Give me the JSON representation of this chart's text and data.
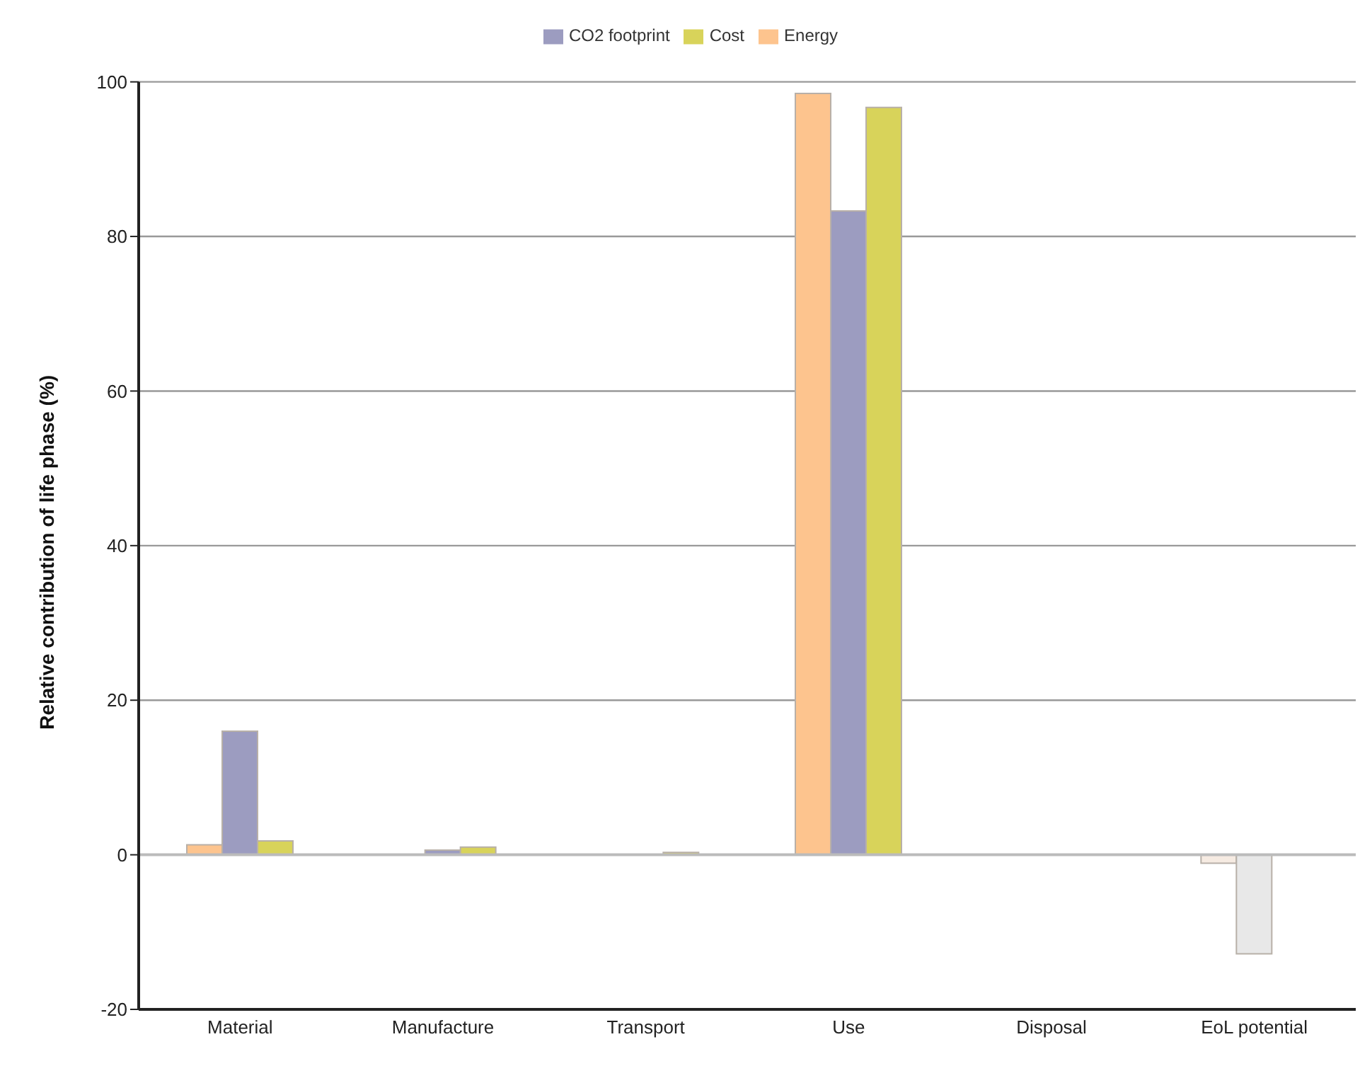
{
  "chart_data": {
    "type": "bar",
    "ylabel": "Relative contribution of life phase (%)",
    "categories": [
      "Material",
      "Manufacture",
      "Transport",
      "Use",
      "Disposal",
      "EoL potential"
    ],
    "series": [
      {
        "name": "Energy",
        "color": "#fdc48e",
        "colors": [
          "#fdc48e",
          "#fdc48e",
          "#fdc48e",
          "#fdc48e",
          "#fdc48e",
          "#f6ebe2"
        ],
        "values": [
          1.3,
          0,
          0,
          98.5,
          0,
          -1.1
        ]
      },
      {
        "name": "CO2 footprint",
        "color": "#9c9cc0",
        "colors": [
          "#9c9cc0",
          "#9c9cc0",
          "#9c9cc0",
          "#9c9cc0",
          "#9c9cc0",
          "#e8e8e8"
        ],
        "values": [
          16,
          0.6,
          0,
          83.3,
          0,
          -12.8
        ]
      },
      {
        "name": "Cost",
        "color": "#d8d35a",
        "values": [
          1.8,
          1,
          0.3,
          96.7,
          0,
          0
        ]
      }
    ],
    "ylim": [
      -20,
      100
    ],
    "yticks": [
      -20,
      0,
      20,
      40,
      60,
      80,
      100
    ],
    "grid": "y",
    "legend": "top"
  }
}
